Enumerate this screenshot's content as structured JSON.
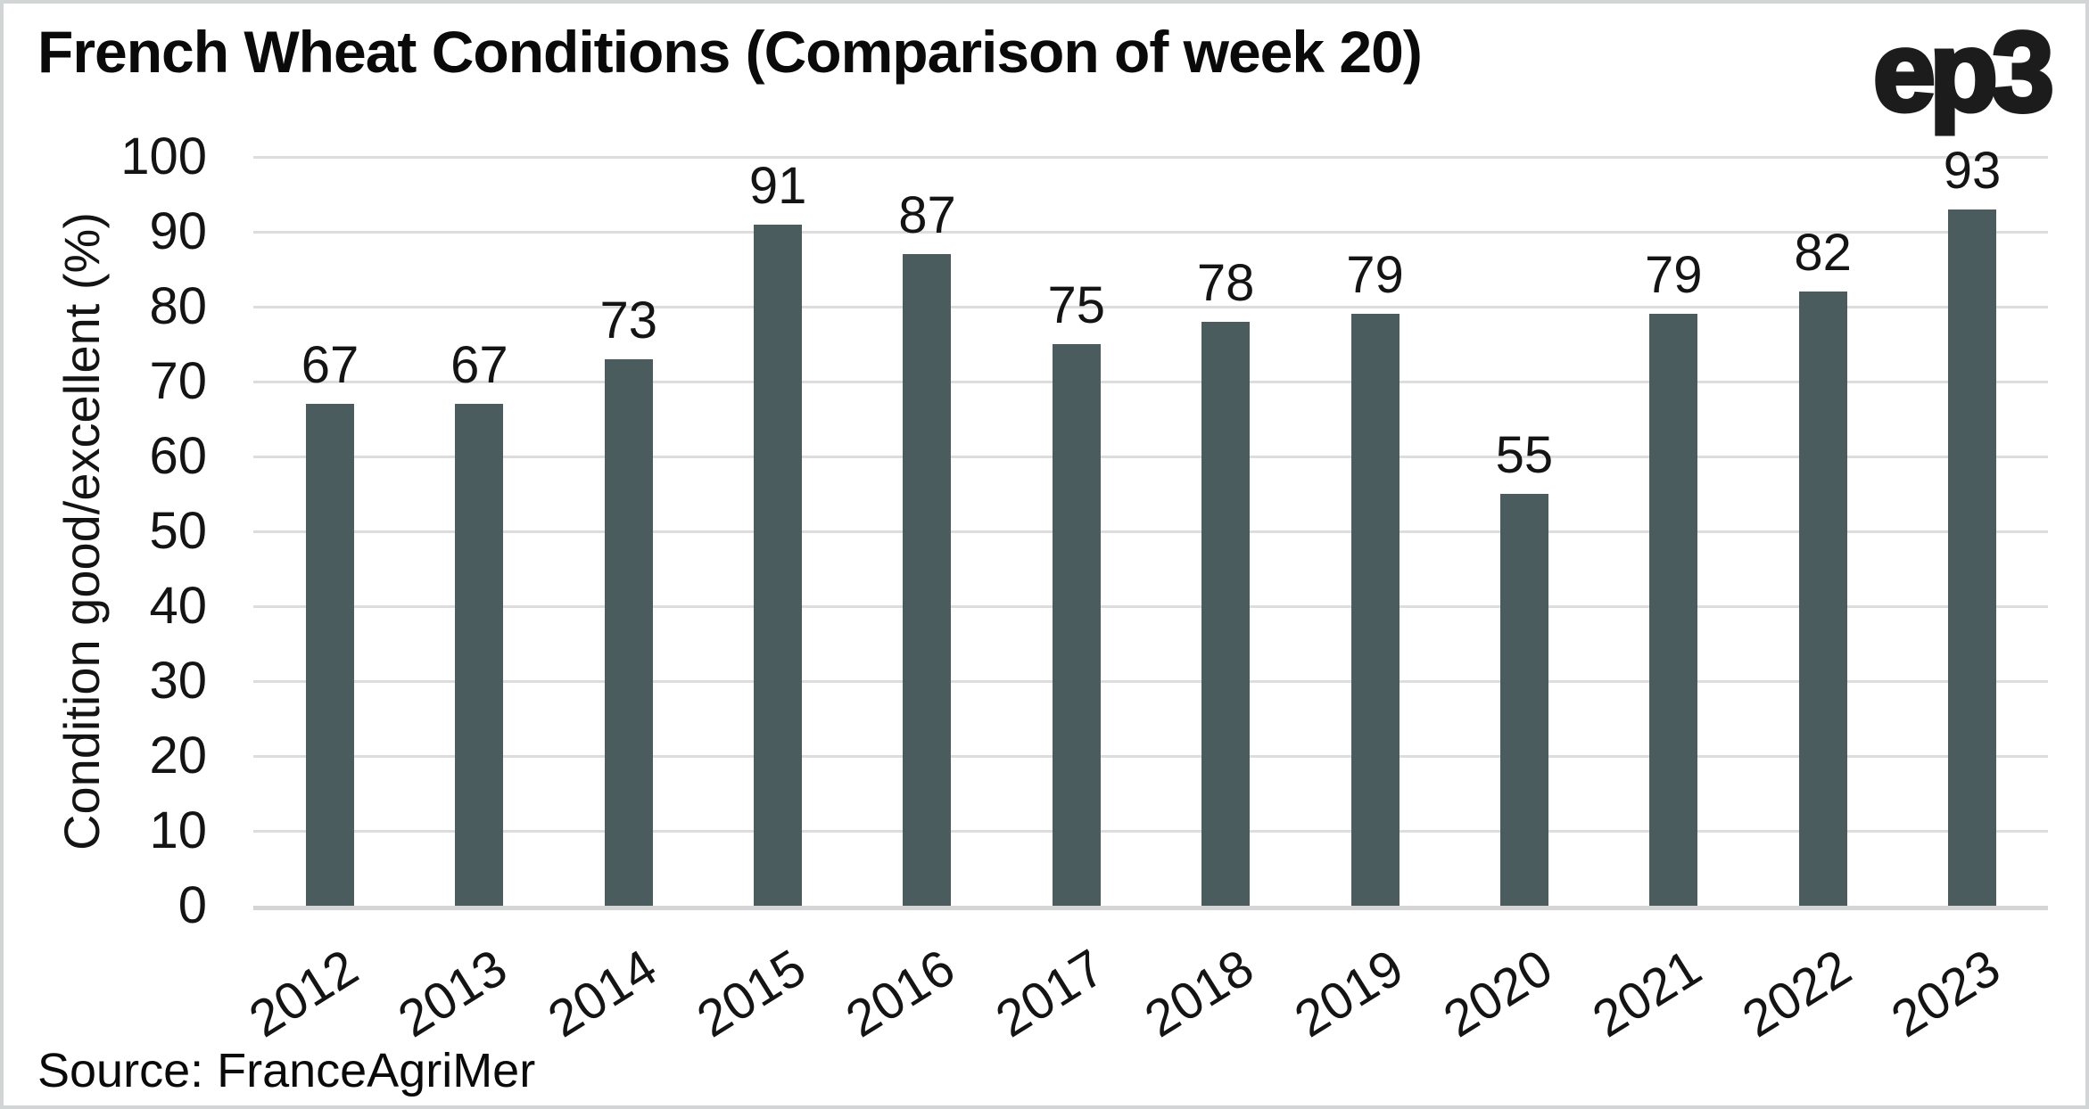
{
  "title": "French Wheat Conditions (Comparison of week 20)",
  "logo_text": "ep3",
  "source": "Source: FranceAgriMer",
  "chart_data": {
    "type": "bar",
    "title": "French Wheat Conditions (Comparison of week 20)",
    "categories": [
      "2012",
      "2013",
      "2014",
      "2015",
      "2016",
      "2017",
      "2018",
      "2019",
      "2020",
      "2021",
      "2022",
      "2023"
    ],
    "values": [
      67,
      67,
      73,
      91,
      87,
      75,
      78,
      79,
      55,
      79,
      82,
      93
    ],
    "xlabel": "",
    "ylabel": "Condition good/excellent (%)",
    "ylim": [
      0,
      100
    ],
    "ytick_step": 10,
    "yticks": [
      0,
      10,
      20,
      30,
      40,
      50,
      60,
      70,
      80,
      90,
      100
    ],
    "grid": "horizontal",
    "legend": "none",
    "value_labels": true,
    "x_tick_rotation_deg": 32,
    "colors": {
      "bar": "#4b5c5f",
      "gridline": "#dddddd",
      "axis_line": "#d5d5d5",
      "text": "#141414",
      "background": "#ffffff",
      "frame_border": "#d2d5d5"
    }
  }
}
